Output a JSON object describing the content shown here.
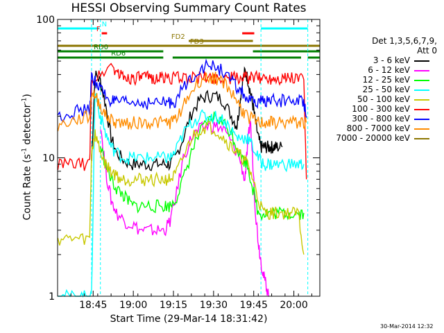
{
  "chart_data": {
    "type": "line",
    "title": "HESSI Observing Summary Count Rates",
    "xlabel": "Start Time (29-Mar-14 18:31:42)",
    "ylabel_main": "Count Rate (s",
    "ylabel_sup": "-1",
    "ylabel_mid": " detector",
    "ylabel_sup2": "-1",
    "ylabel_end": ")",
    "x_unit": "minutes after 18:31:42",
    "xlim": [
      0,
      98
    ],
    "ylim": [
      1,
      100
    ],
    "y_log": true,
    "x_ticks": [
      {
        "x": 13.3,
        "label": "18:45"
      },
      {
        "x": 28.3,
        "label": "19:00"
      },
      {
        "x": 43.3,
        "label": "19:15"
      },
      {
        "x": 58.3,
        "label": "19:30"
      },
      {
        "x": 73.3,
        "label": "19:45"
      },
      {
        "x": 88.3,
        "label": "20:00"
      }
    ],
    "y_ticks": [
      {
        "y": 1,
        "label": "1"
      },
      {
        "y": 10,
        "label": "10"
      },
      {
        "y": 100,
        "label": "100"
      }
    ],
    "legend_header": [
      "Det 1,3,5,6,7,9,",
      "Att 0"
    ],
    "legend_position": "right",
    "series": [
      {
        "name": "3 - 6 keV",
        "color": "#000000",
        "x": [
          12.7,
          14,
          16,
          18,
          20,
          22,
          25,
          28,
          31,
          34,
          37,
          40,
          42,
          44,
          47,
          50,
          53,
          56,
          59,
          62,
          65,
          67,
          68,
          69,
          70,
          71,
          72,
          73,
          74,
          75,
          76,
          77,
          78,
          79,
          80,
          81,
          82,
          84
        ],
        "y": [
          9.5,
          40,
          36,
          24,
          14,
          11,
          9.5,
          9,
          9,
          9,
          9,
          9,
          9,
          10,
          14,
          21,
          26,
          28,
          28,
          26,
          20,
          17,
          24,
          35,
          42,
          38,
          30,
          24,
          18,
          14,
          12,
          12,
          12,
          12,
          12,
          12,
          12,
          12
        ]
      },
      {
        "name": "6 - 12 keV",
        "color": "#ff00ff",
        "x": [
          16,
          18,
          20,
          22,
          25,
          28,
          31,
          34,
          37,
          40,
          42,
          44,
          47,
          50,
          53,
          56,
          59,
          62,
          65,
          68,
          70,
          71,
          72,
          73,
          74,
          75,
          76,
          77,
          78,
          79
        ],
        "y": [
          18,
          8,
          5,
          4,
          3.5,
          3.3,
          3,
          3,
          3,
          3,
          3.5,
          5,
          10,
          14,
          16,
          17,
          17,
          16,
          13,
          10,
          7,
          12,
          19,
          9,
          4,
          2.5,
          1.8,
          1.4,
          1.2,
          1.0
        ]
      },
      {
        "name": "12 - 25 keV",
        "color": "#00ff00",
        "x": [
          16,
          18,
          20,
          22,
          24,
          26,
          28,
          31,
          34,
          37,
          40,
          42,
          44,
          47,
          50,
          53,
          56,
          59,
          62,
          65,
          67,
          69,
          71,
          73,
          75,
          77,
          79,
          81,
          84,
          87,
          90,
          92
        ],
        "y": [
          12,
          9,
          7,
          6,
          5.5,
          5,
          4.5,
          4.5,
          4.5,
          4.5,
          4.5,
          4.5,
          5,
          7,
          11,
          15,
          18,
          20,
          18,
          15,
          12,
          10,
          9,
          6,
          4,
          4,
          4,
          4,
          4,
          4,
          4,
          4
        ]
      },
      {
        "name": "25 - 50 keV",
        "color": "#00ffff",
        "x": [
          0.1,
          4,
          8,
          11,
          12.7,
          14,
          16,
          18,
          20,
          22,
          25,
          28,
          31,
          34,
          37,
          40,
          42,
          44,
          47,
          50,
          53,
          56,
          59,
          62,
          65,
          67,
          69,
          71,
          73,
          75,
          77,
          79,
          81,
          84,
          87,
          90,
          92
        ],
        "y": [
          1.0,
          1.0,
          1.0,
          1.0,
          1.0,
          30,
          20,
          15,
          12,
          11,
          10,
          10,
          10,
          10,
          10,
          10,
          10,
          11,
          15,
          18,
          20,
          20,
          20,
          19,
          16,
          14,
          14,
          14,
          12,
          10,
          9,
          9,
          9,
          9,
          9,
          9,
          9
        ]
      },
      {
        "name": "50 - 100 keV",
        "color": "#c8c800",
        "x": [
          0.1,
          4,
          8,
          12,
          12.7,
          14,
          16,
          18,
          20,
          22,
          24,
          26,
          28,
          31,
          34,
          37,
          40,
          42,
          44,
          47,
          50,
          53,
          56,
          59,
          62,
          65,
          67,
          69,
          71,
          73,
          75,
          77,
          79,
          81,
          84,
          87,
          90,
          92
        ],
        "y": [
          2.6,
          2.6,
          2.6,
          2.6,
          11,
          15,
          11,
          9,
          8,
          7.5,
          7,
          7,
          7,
          7,
          7,
          7,
          7,
          7,
          7.5,
          10,
          14,
          16,
          17,
          16,
          14,
          12,
          11,
          10,
          9,
          7,
          5,
          4,
          4,
          4,
          4,
          4,
          4,
          2
        ]
      },
      {
        "name": "100 - 300 keV",
        "color": "#ff0000",
        "x": [
          0.1,
          4,
          8,
          12,
          12.7,
          16,
          20,
          22,
          24,
          26,
          28,
          30,
          32,
          34,
          36,
          38,
          40,
          42,
          44,
          47,
          50,
          53,
          56,
          59,
          62,
          65,
          67,
          69,
          71,
          73,
          75,
          77,
          79,
          81,
          83,
          85,
          87,
          90,
          92,
          93
        ],
        "y": [
          9,
          9,
          9,
          9,
          36,
          40,
          47,
          42,
          39,
          38,
          38,
          38,
          38,
          38,
          38,
          38,
          38,
          38,
          38,
          38,
          38,
          38,
          38,
          38,
          38,
          38,
          38,
          38,
          38,
          38,
          38,
          38,
          38,
          38,
          38,
          38,
          38,
          38,
          38,
          7
        ]
      },
      {
        "name": "300 - 800 keV",
        "color": "#0000ff",
        "x": [
          0.1,
          4,
          8,
          12,
          12.7,
          14,
          16,
          18,
          20,
          22,
          25,
          28,
          31,
          34,
          37,
          40,
          42,
          44,
          47,
          50,
          53,
          56,
          59,
          62,
          65,
          67,
          69,
          71,
          73,
          75,
          77,
          79,
          81,
          84,
          87,
          90,
          92,
          93
        ],
        "y": [
          20,
          21,
          22,
          22,
          38,
          36,
          32,
          28,
          26,
          25,
          25,
          25,
          25,
          25,
          25,
          25,
          25,
          26,
          32,
          38,
          44,
          46,
          46,
          42,
          36,
          32,
          30,
          26,
          25,
          25,
          26,
          26,
          26,
          26,
          26,
          26,
          26,
          20
        ]
      },
      {
        "name": "800 - 7000 keV",
        "color": "#ff8c00",
        "x": [
          0.1,
          4,
          8,
          12,
          12.7,
          14,
          16,
          18,
          20,
          22,
          25,
          28,
          31,
          34,
          37,
          40,
          42,
          44,
          47,
          50,
          53,
          56,
          59,
          62,
          65,
          67,
          69,
          71,
          73,
          75,
          77,
          79,
          81,
          84,
          87,
          90,
          92,
          93
        ],
        "y": [
          17,
          18,
          19,
          20,
          30,
          28,
          24,
          20,
          19,
          18,
          18,
          18,
          18,
          18,
          18,
          18,
          18,
          19,
          24,
          30,
          36,
          38,
          38,
          35,
          30,
          26,
          22,
          20,
          19,
          18,
          18,
          18,
          18,
          18,
          18,
          18,
          18,
          18
        ]
      },
      {
        "name": "7000 - 20000 keV",
        "color": "#8b7500",
        "x": [],
        "y": []
      }
    ],
    "flags": [
      {
        "label": "N",
        "color": "#00ffff",
        "x0": 0,
        "x1": 15.5,
        "level": 0,
        "label_x": 16.5
      },
      {
        "label": "",
        "color": "#00ffff",
        "x0": 76,
        "x1": 93.5,
        "level": 0,
        "label_x": null
      },
      {
        "label": "F",
        "color": "#ff0000",
        "x0": 16.5,
        "x1": 18.5,
        "level": 1,
        "label_x": 14.5
      },
      {
        "label": "",
        "color": "#ff0000",
        "x0": 69,
        "x1": 73.5,
        "level": 1,
        "label_x": null
      },
      {
        "label": "FD2",
        "color": "#8b7500",
        "x0": 49,
        "x1": 73,
        "level": 2,
        "label_x": 42.5
      },
      {
        "label": "FD3",
        "color": "#8b7500",
        "x0": 0,
        "x1": 98,
        "level": 3,
        "label_x": 49.5
      },
      {
        "label": "RD0",
        "color": "#008000",
        "x0": 0,
        "x1": 39.5,
        "level": 4,
        "label_x": 13.5
      },
      {
        "label": "",
        "color": "#008000",
        "x0": 73,
        "x1": 98,
        "level": 4,
        "label_x": null
      },
      {
        "label": "RD6",
        "color": "#008000",
        "x0": 0,
        "x1": 39.5,
        "level": 5,
        "label_x": 20
      },
      {
        "label": "",
        "color": "#008000",
        "x0": 43,
        "x1": 91,
        "level": 5,
        "label_x": null
      },
      {
        "label": "",
        "color": "#008000",
        "x0": 93.5,
        "x1": 98,
        "level": 5,
        "label_x": null
      }
    ],
    "saa_lines": [
      {
        "x": 12.7,
        "color": "#00ffff"
      },
      {
        "x": 16.0,
        "color": "#00ffff"
      },
      {
        "x": 76.0,
        "color": "#00ffff"
      },
      {
        "x": 93.5,
        "color": "#00ffff"
      }
    ],
    "grid": false
  },
  "timestamp": "30-Mar-2014 12:32"
}
